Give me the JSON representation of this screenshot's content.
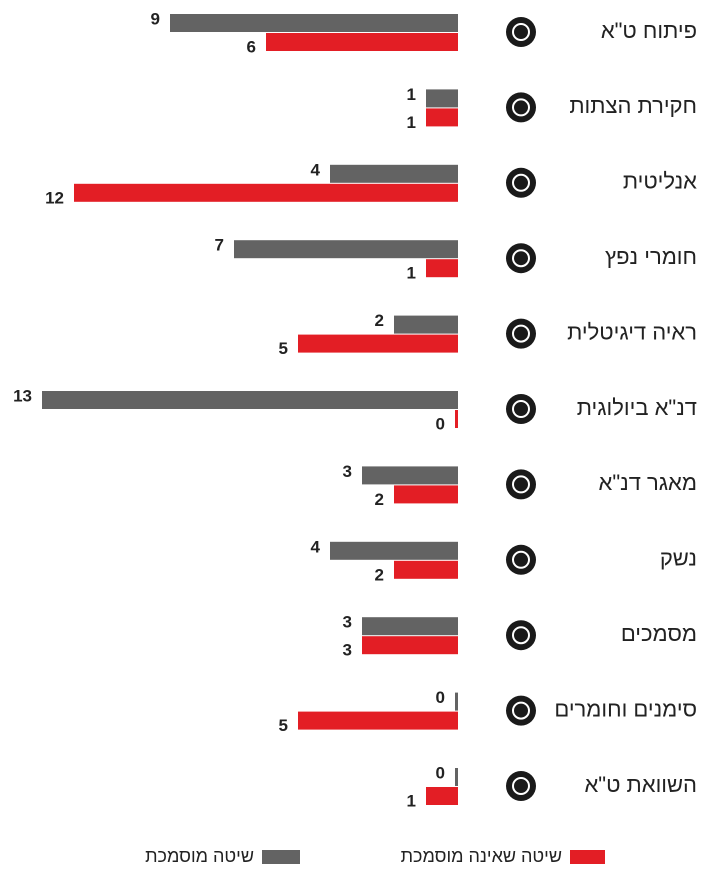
{
  "chart_data": {
    "type": "hbar",
    "categories": [
      "פיתוח ט\"א",
      "חקירת הצתות",
      "אנליטית",
      "חומרי נפץ",
      "ראיה דיגיטלית",
      "דנ\"א ביולוגית",
      "מאגר דנ\"א",
      "נשק",
      "מסמכים",
      "סימנים וחומרים",
      "השוואת ט\"א"
    ],
    "series": [
      {
        "name": "שיטה מוסמכת",
        "color": "#636363",
        "values": [
          9,
          1,
          4,
          7,
          2,
          13,
          3,
          4,
          3,
          0,
          0
        ]
      },
      {
        "name": "שיטה שאינה מוסמכת",
        "color": "#e31e25",
        "values": [
          6,
          1,
          12,
          1,
          5,
          0,
          2,
          2,
          3,
          5,
          1
        ]
      }
    ]
  }
}
